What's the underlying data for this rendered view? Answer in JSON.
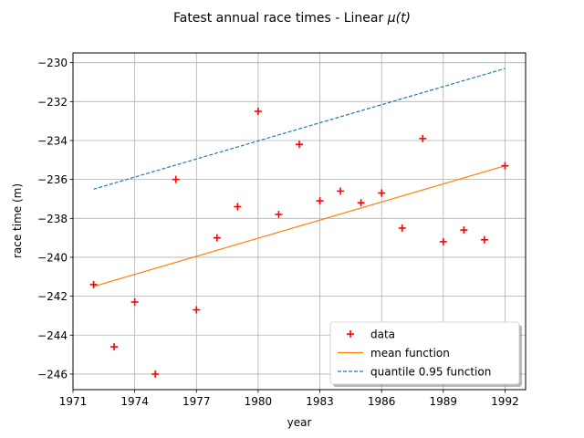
{
  "chart_data": {
    "type": "scatter",
    "title": "Fatest annual race times - Linear μ(t)",
    "title_main": "Fatest annual race times - Linear ",
    "title_math": "μ(t)",
    "xlabel": "year",
    "ylabel": "race time (m)",
    "xlim": [
      1971,
      1993
    ],
    "ylim": [
      -246.8,
      -229.5
    ],
    "xticks": [
      1971,
      1974,
      1977,
      1980,
      1983,
      1986,
      1989,
      1992
    ],
    "yticks": [
      -246,
      -244,
      -242,
      -240,
      -238,
      -236,
      -234,
      -232,
      -230
    ],
    "grid": true,
    "legend_position": "lower-right",
    "series": [
      {
        "name": "data",
        "kind": "scatter",
        "marker": "+",
        "color": "#ff0000",
        "x": [
          1972,
          1973,
          1974,
          1975,
          1976,
          1977,
          1978,
          1979,
          1980,
          1981,
          1982,
          1983,
          1984,
          1985,
          1986,
          1987,
          1988,
          1989,
          1990,
          1991,
          1992
        ],
        "y": [
          -241.4,
          -244.6,
          -242.3,
          -246.0,
          -236.0,
          -242.7,
          -239.0,
          -237.4,
          -232.5,
          -237.8,
          -234.2,
          -237.1,
          -236.6,
          -237.2,
          -236.7,
          -238.5,
          -233.9,
          -239.2,
          -238.6,
          -239.1,
          -235.3
        ]
      },
      {
        "name": "mean function",
        "kind": "line",
        "style": "solid",
        "color": "#ff7f0e",
        "x": [
          1972,
          1992
        ],
        "y": [
          -241.5,
          -235.3
        ]
      },
      {
        "name": "quantile 0.95  function",
        "kind": "line",
        "style": "dashed",
        "color": "#1f77b4",
        "x": [
          1972,
          1992
        ],
        "y": [
          -236.5,
          -230.3
        ]
      }
    ]
  }
}
